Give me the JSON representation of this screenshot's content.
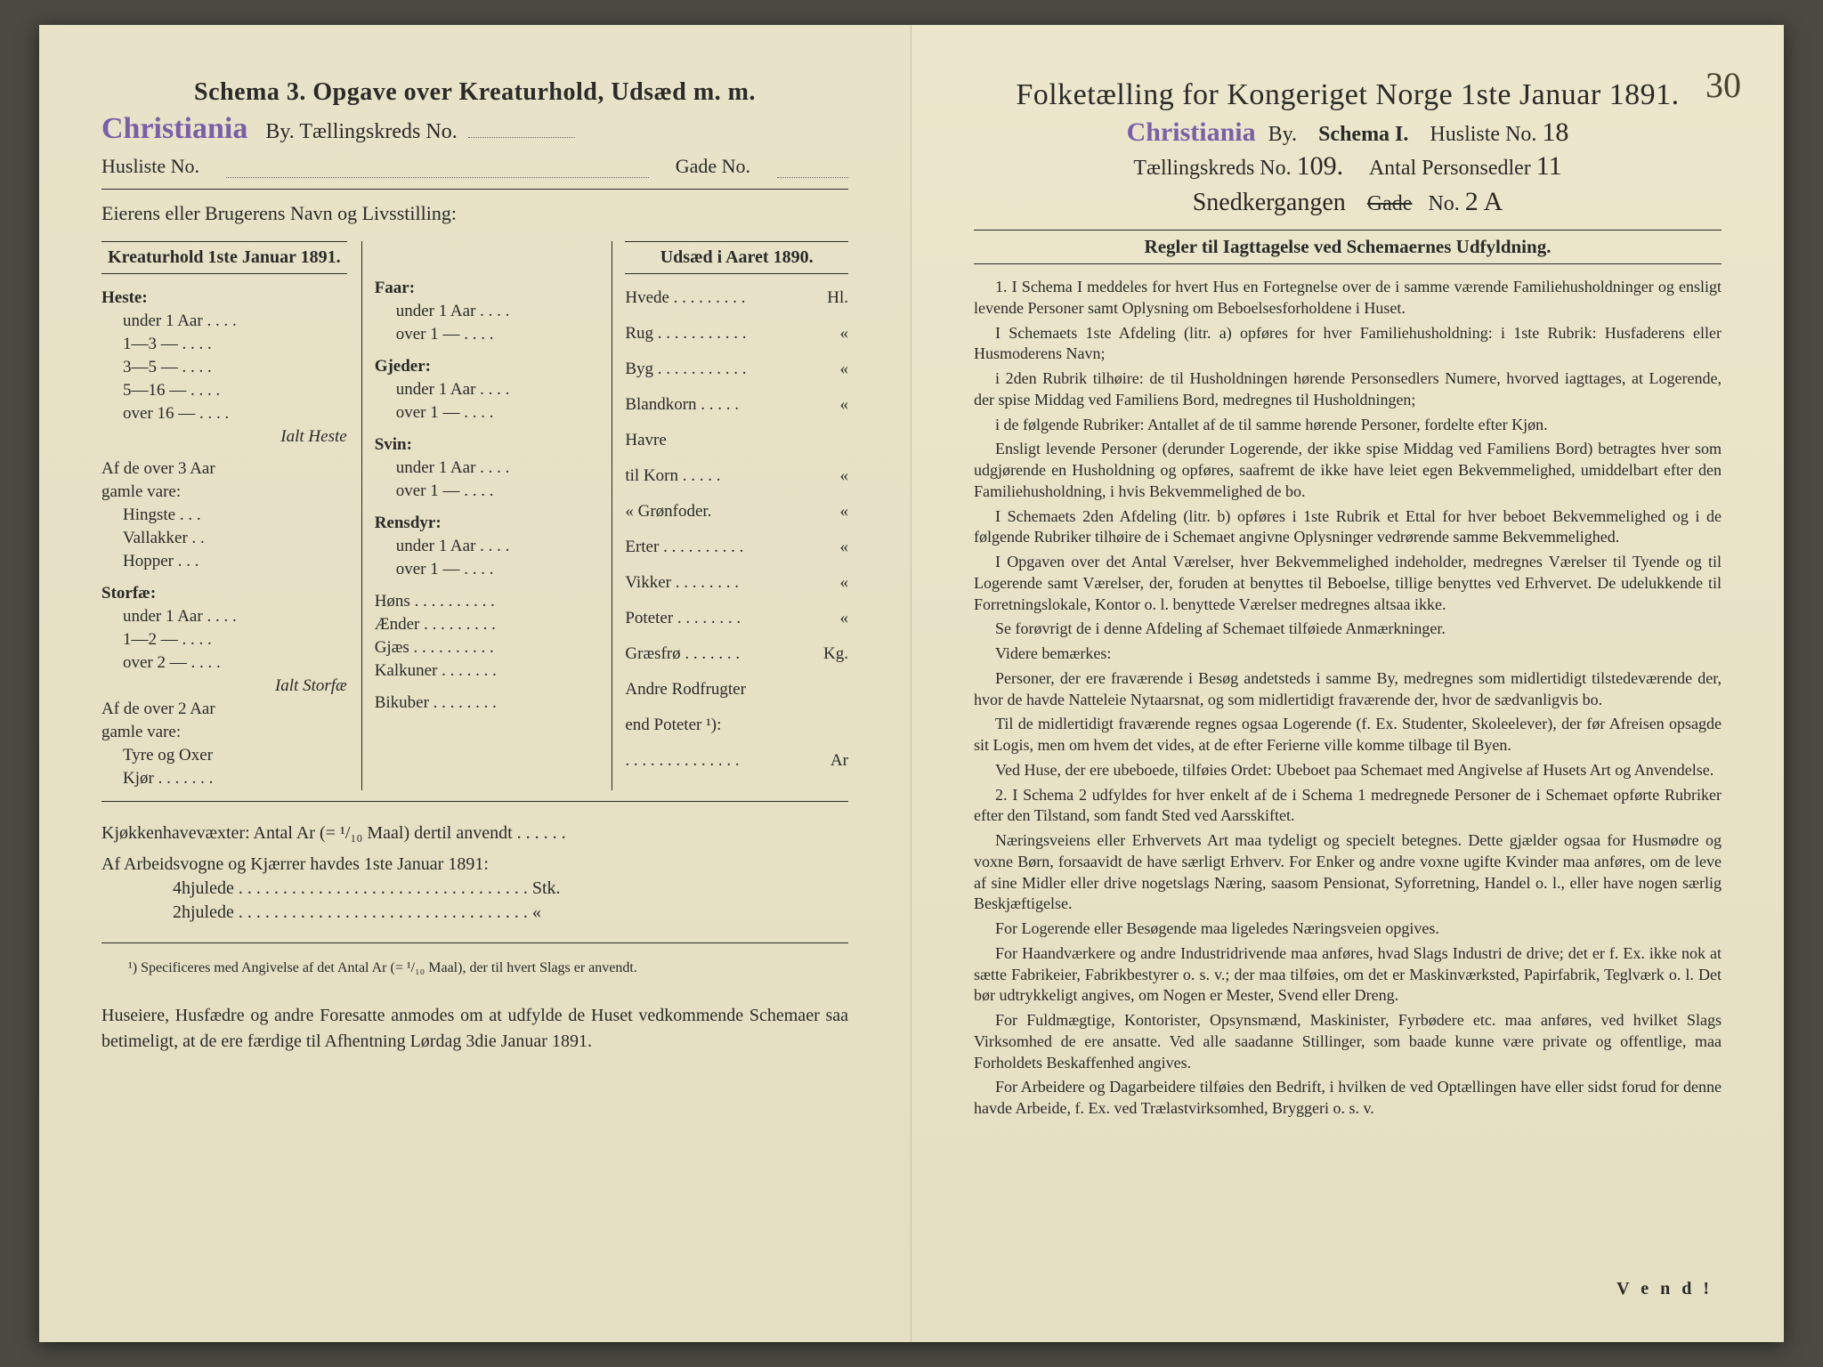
{
  "colors": {
    "paper": "#e8e2c8",
    "ink": "#2a2a28",
    "stamp": "#7a5fa8",
    "handwriting": "#2a2622",
    "background": "#4a4a42"
  },
  "left": {
    "title": "Schema 3.  Opgave over Kreaturhold, Udsæd m. m.",
    "stamp": "Christiania",
    "by_label": "By.  Tællingskreds No.",
    "husliste_label": "Husliste No.",
    "gade_label": "Gade No.",
    "owner_label": "Eierens eller Brugerens Navn og Livsstilling:",
    "kreatur_header": "Kreaturhold 1ste Januar 1891.",
    "udsaed_header": "Udsæd i Aaret 1890.",
    "heste": {
      "title": "Heste:",
      "rows": [
        "under 1 Aar . . . .",
        "1—3   —  . . . .",
        "3—5   —  . . . .",
        "5—16  —  . . . .",
        "over 16 —  . . . ."
      ],
      "sum": "Ialt Heste",
      "over3_title": "Af de over 3 Aar",
      "over3_sub": "gamle vare:",
      "over3_rows": [
        "Hingste . . .",
        "Vallakker . .",
        "Hopper . . ."
      ]
    },
    "storfae": {
      "title": "Storfæ:",
      "rows": [
        "under 1 Aar . . . .",
        "1—2   —  . . . .",
        "over 2  —  . . . ."
      ],
      "sum": "Ialt Storfæ",
      "over2_title": "Af de over 2 Aar",
      "over2_sub": "gamle vare:",
      "over2_rows": [
        "Tyre og Oxer",
        "Kjør . . . . . . ."
      ]
    },
    "faar": {
      "title": "Faar:",
      "rows": [
        "under 1 Aar . . . .",
        "over 1  —  . . . ."
      ]
    },
    "gjeder": {
      "title": "Gjeder:",
      "rows": [
        "under 1 Aar . . . .",
        "over 1  —  . . . ."
      ]
    },
    "svin": {
      "title": "Svin:",
      "rows": [
        "under 1 Aar . . . .",
        "over 1  —  . . . ."
      ]
    },
    "rensdyr": {
      "title": "Rensdyr:",
      "rows": [
        "under 1 Aar . . . .",
        "over 1  —  . . . ."
      ]
    },
    "fowl": [
      "Høns . . . . . . . . . .",
      "Ænder . . . . . . . . .",
      "Gjæs . . . . . . . . . .",
      "Kalkuner . . . . . . .",
      "Bikuber . . . . . . . ."
    ],
    "udsaed_rows": [
      {
        "l": "Hvede . . . . . . . . .",
        "u": "Hl."
      },
      {
        "l": "Rug . . . . . . . . . . .",
        "u": "«"
      },
      {
        "l": "Byg . . . . . . . . . . .",
        "u": "«"
      },
      {
        "l": "Blandkorn . . . . .",
        "u": "«"
      },
      {
        "l": "Havre",
        "u": ""
      },
      {
        "l": "    til Korn . . . . .",
        "u": "«"
      },
      {
        "l": "    «  Grønfoder.",
        "u": "«"
      },
      {
        "l": "Erter . . . . . . . . . .",
        "u": "«"
      },
      {
        "l": "Vikker . . . . . . . .",
        "u": "«"
      },
      {
        "l": "Poteter . . . . . . . .",
        "u": "«"
      },
      {
        "l": "Græsfrø . . . . . . .",
        "u": "Kg."
      },
      {
        "l": "Andre Rodfrugter",
        "u": ""
      },
      {
        "l": "    end Poteter ¹):",
        "u": ""
      },
      {
        "l": ". . . . . . . . . . . . . .",
        "u": "Ar"
      }
    ],
    "kjokken_line": "Kjøkkenhavevæxter:  Antal Ar (= ¹/₁₀ Maal) dertil anvendt . . . . . .",
    "vogn_header": "Af Arbeidsvogne og Kjærrer havdes 1ste Januar 1891:",
    "vogn_rows": [
      "4hjulede . . . . . . . . . . . . . . . . . . . . . . . . . . . . . . . . . Stk.",
      "2hjulede . . . . . . . . . . . . . . . . . . . . . . . . . . . . . . . . .   «"
    ],
    "footnote": "¹) Specificeres med Angivelse af det Antal Ar (= ¹/₁₀ Maal), der til hvert Slags er anvendt.",
    "closing": "Huseiere, Husfædre og andre Foresatte anmodes om at udfylde de Huset vedkommende Schemaer saa betimeligt, at de ere færdige til Afhentning Lørdag 3die Januar 1891."
  },
  "right": {
    "page_number_hand": "30",
    "title": "Folketælling for Kongeriget Norge 1ste Januar 1891.",
    "stamp": "Christiania",
    "line2_by": "By.",
    "line2_schema": "Schema I.",
    "line2_husliste": "Husliste No.",
    "husliste_hand": "18",
    "line3_kreds": "Tællingskreds No.",
    "kreds_hand": "109.",
    "line3_antal": "Antal Personsedler",
    "antal_hand": "11",
    "line4_hand": "Snedkergangen",
    "line4_gade": "Gade",
    "line4_no": "No.",
    "line4_no_hand": "2 A",
    "rules_header": "Regler til Iagttagelse ved Schemaernes Udfyldning.",
    "rules": [
      "1. I Schema I meddeles for hvert Hus en Fortegnelse over de i samme værende Familiehusholdninger og ensligt levende Personer samt Oplysning om Beboelsesforholdene i Huset.",
      "I Schemaets 1ste Afdeling (litr. a) opføres for hver Familiehusholdning: i 1ste Rubrik: Husfaderens eller Husmoderens Navn;",
      "i 2den Rubrik tilhøire: de til Husholdningen hørende Personsedlers Numere, hvorved iagttages, at Logerende, der spise Middag ved Familiens Bord, medregnes til Husholdningen;",
      "i de følgende Rubriker: Antallet af de til samme hørende Personer, fordelte efter Kjøn.",
      "Ensligt levende Personer (derunder Logerende, der ikke spise Middag ved Familiens Bord) betragtes hver som udgjørende en Husholdning og opføres, saafremt de ikke have leiet egen Bekvemmelighed, umiddelbart efter den Familiehusholdning, i hvis Bekvemmelighed de bo.",
      "I Schemaets 2den Afdeling (litr. b) opføres i 1ste Rubrik et Ettal for hver beboet Bekvemmelighed og i de følgende Rubriker tilhøire de i Schemaet angivne Oplysninger vedrørende samme Bekvemmelighed.",
      "I Opgaven over det Antal Værelser, hver Bekvemmelighed indeholder, medregnes Værelser til Tyende og til Logerende samt Værelser, der, foruden at benyttes til Beboelse, tillige benyttes ved Erhvervet. De udelukkende til Forretningslokale, Kontor o. l. benyttede Værelser medregnes altsaa ikke.",
      "Se forøvrigt de i denne Afdeling af Schemaet tilføiede Anmærkninger.",
      "Videre bemærkes:",
      "Personer, der ere fraværende i Besøg andetsteds i samme By, medregnes som midlertidigt tilstedeværende der, hvor de havde Natteleie Nytaarsnat, og som midlertidigt fraværende der, hvor de sædvanligvis bo.",
      "Til de midlertidigt fraværende regnes ogsaa Logerende (f. Ex. Studenter, Skoleelever), der før Afreisen opsagde sit Logis, men om hvem det vides, at de efter Ferierne ville komme tilbage til Byen.",
      "Ved Huse, der ere ubeboede, tilføies Ordet: Ubeboet paa Schemaet med Angivelse af Husets Art og Anvendelse.",
      "2. I Schema 2 udfyldes for hver enkelt af de i Schema 1 medregnede Personer de i Schemaet opførte Rubriker efter den Tilstand, som fandt Sted ved Aarsskiftet.",
      "Næringsveiens eller Erhvervets Art maa tydeligt og specielt betegnes. Dette gjælder ogsaa for Husmødre og voxne Børn, forsaavidt de have særligt Erhverv. For Enker og andre voxne ugifte Kvinder maa anføres, om de leve af sine Midler eller drive nogetslags Næring, saasom Pensionat, Syforretning, Handel o. l., eller have nogen særlig Beskjæftigelse.",
      "For Logerende eller Besøgende maa ligeledes Næringsveien opgives.",
      "For Haandværkere og andre Industridrivende maa anføres, hvad Slags Industri de drive; det er f. Ex. ikke nok at sætte Fabrikeier, Fabrikbestyrer o. s. v.; der maa tilføies, om det er Maskinværksted, Papirfabrik, Teglværk o. l. Det bør udtrykkeligt angives, om Nogen er Mester, Svend eller Dreng.",
      "For Fuldmægtige, Kontorister, Opsynsmænd, Maskinister, Fyrbødere etc. maa anføres, ved hvilket Slags Virksomhed de ere ansatte. Ved alle saadanne Stillinger, som baade kunne være private og offentlige, maa Forholdets Beskaffenhed angives.",
      "For Arbeidere og Dagarbeidere tilføies den Bedrift, i hvilken de ved Optællingen have eller sidst forud for denne havde Arbeide, f. Ex. ved Trælastvirksomhed, Bryggeri o. s. v."
    ],
    "vend": "V e n d !"
  }
}
